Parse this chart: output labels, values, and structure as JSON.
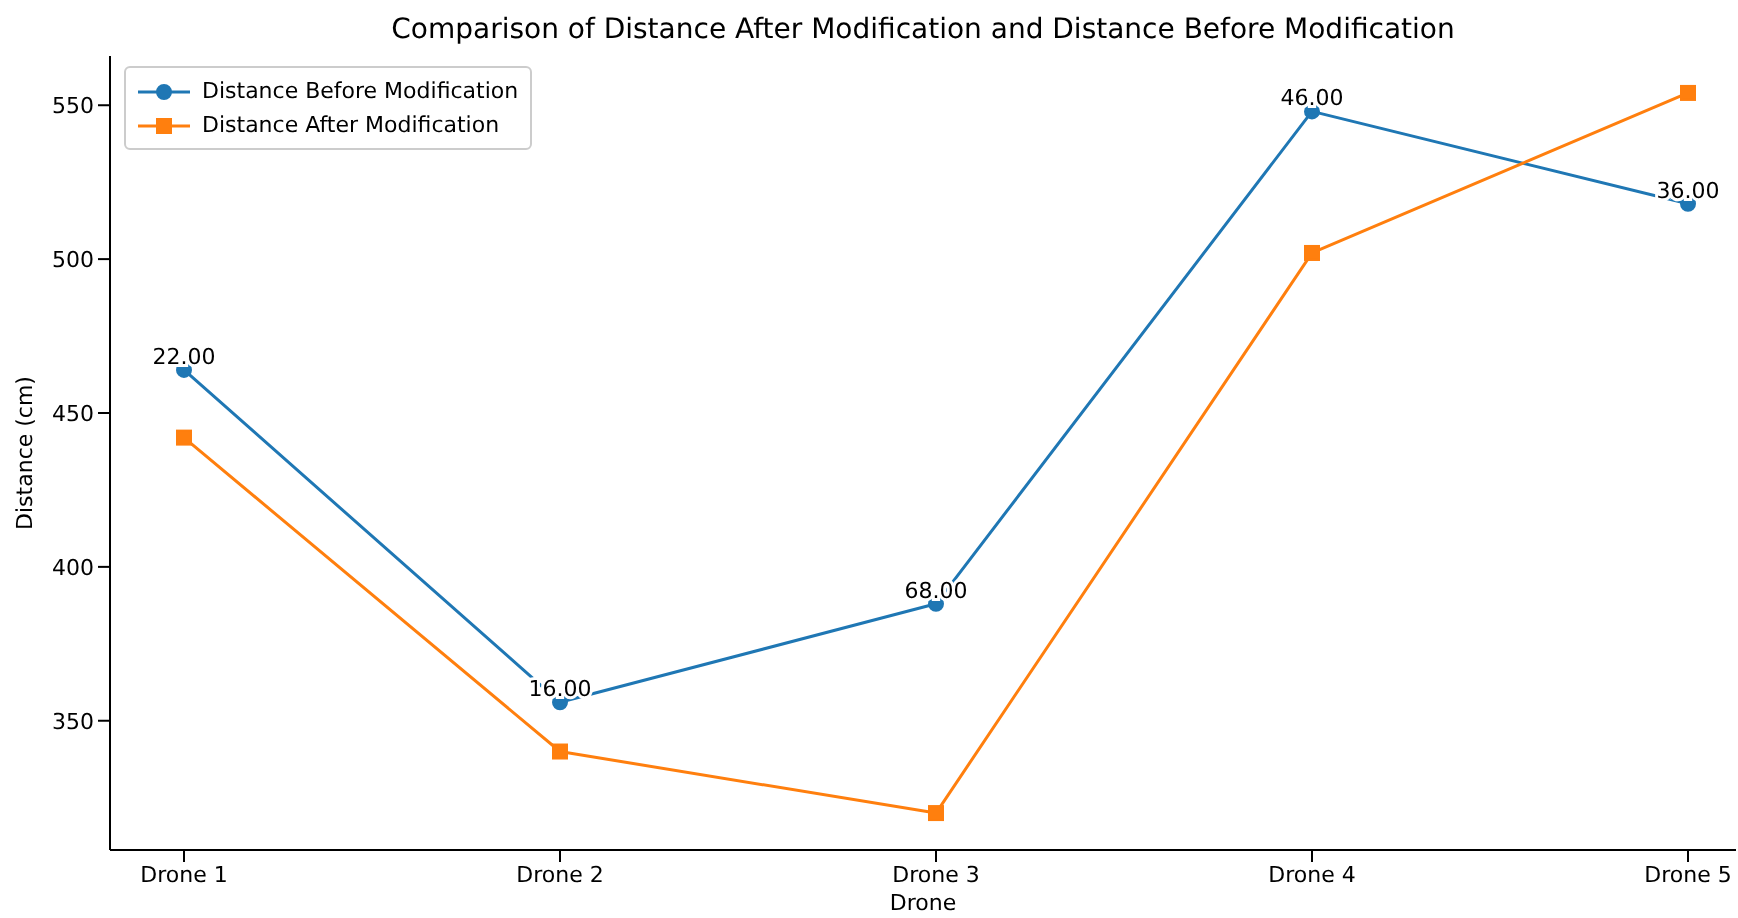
{
  "chart_data": {
    "type": "line",
    "title": "Comparison of Distance After Modification and Distance Before Modification",
    "xlabel": "Drone",
    "ylabel": "Distance (cm)",
    "categories": [
      "Drone 1",
      "Drone 2",
      "Drone 3",
      "Drone 4",
      "Drone 5"
    ],
    "series": [
      {
        "name": "Distance Before Modification",
        "color": "#1f77b4",
        "marker": "circle",
        "values": [
          464,
          356,
          388,
          548,
          518
        ]
      },
      {
        "name": "Distance After Modification",
        "color": "#ff7f0e",
        "marker": "square",
        "values": [
          442,
          340,
          320,
          502,
          554
        ]
      }
    ],
    "annotations": [
      {
        "text": "22.00",
        "x": "Drone 1",
        "y": 464
      },
      {
        "text": "16.00",
        "x": "Drone 2",
        "y": 356
      },
      {
        "text": "68.00",
        "x": "Drone 3",
        "y": 388
      },
      {
        "text": "46.00",
        "x": "Drone 4",
        "y": 548
      },
      {
        "text": "36.00",
        "x": "Drone 5",
        "y": 518
      }
    ],
    "ylim": [
      308,
      566
    ],
    "yticks": [
      350,
      400,
      450,
      500,
      550
    ],
    "legend": "top left"
  }
}
